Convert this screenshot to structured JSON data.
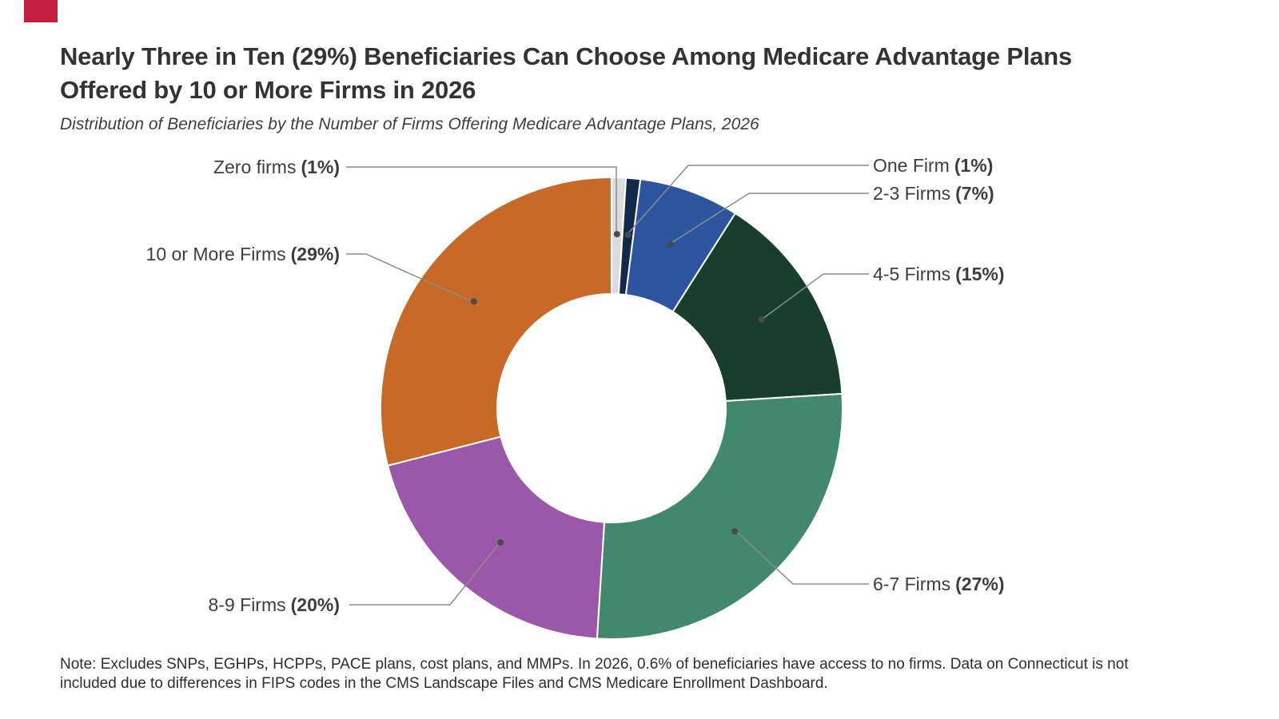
{
  "brand": {
    "accent_color": "#C2203C"
  },
  "header": {
    "title_line1": "Nearly Three in Ten (29%) Beneficiaries Can Choose Among Medicare Advantage Plans",
    "title_line2": "Offered by 10 or More Firms in 2026",
    "subtitle": "Distribution of Beneficiaries by the Number of Firms Offering Medicare Advantage Plans, 2026"
  },
  "note": {
    "line1": "Note: Excludes SNPs, EGHPs, HCPPs, PACE plans, cost plans, and MMPs. In 2026, 0.6% of beneficiaries have access to no firms. Data on Connecticut is not",
    "line2": "included due to differences in FIPS codes in the CMS Landscape Files and CMS Medicare Enrollment Dashboard."
  },
  "chart_data": {
    "type": "pie",
    "variant": "donut",
    "title": "Distribution of Beneficiaries by the Number of Firms Offering Medicare Advantage Plans, 2026",
    "units": "percent of beneficiaries",
    "start_angle_deg_from_12": 0,
    "clockwise": true,
    "total": 100,
    "legend_position": "callout-labels",
    "segments": [
      {
        "label": "Zero firms",
        "pct_label": "(1%)",
        "value": 1,
        "color": "#DCDCDC"
      },
      {
        "label": "One Firm",
        "pct_label": "(1%)",
        "value": 1,
        "color": "#13294B"
      },
      {
        "label": "2-3 Firms",
        "pct_label": "(7%)",
        "value": 7,
        "color": "#2D549E"
      },
      {
        "label": "4-5 Firms",
        "pct_label": "(15%)",
        "value": 15,
        "color": "#173F2C"
      },
      {
        "label": "6-7 Firms",
        "pct_label": "(27%)",
        "value": 27,
        "color": "#41886F"
      },
      {
        "label": "8-9 Firms",
        "pct_label": "(20%)",
        "value": 20,
        "color": "#9C58A8"
      },
      {
        "label": "10 or More Firms",
        "pct_label": "(29%)",
        "value": 29,
        "color": "#C76A27"
      }
    ]
  }
}
